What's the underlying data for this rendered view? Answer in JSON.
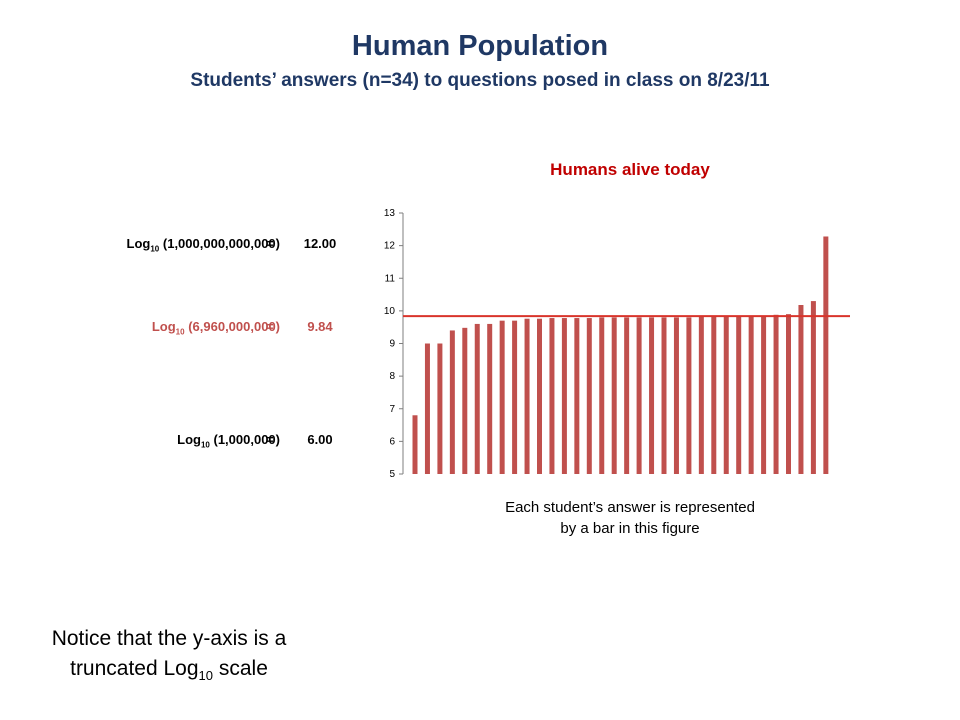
{
  "header": {
    "title": "Human Population",
    "subtitle": "Students’ answers (n=34) to questions posed in class on 8/23/11"
  },
  "log_labels": [
    {
      "prefix": "Log",
      "base": "10",
      "arg": "(1,000,000,000,000)",
      "equals": "=",
      "value": "12.00"
    },
    {
      "prefix": "Log",
      "base": "10",
      "arg": "(6,960,000,000)",
      "equals": "=",
      "value": "9.84"
    },
    {
      "prefix": "Log",
      "base": "10",
      "arg": "(1,000,000)",
      "equals": "=",
      "value": "6.00"
    }
  ],
  "bar_note": {
    "line1": "Each student’s answer is represented",
    "line2": "by a bar in this figure"
  },
  "notice": {
    "line1": "Notice that the y-axis is a",
    "line2_prefix": "truncated Log",
    "line2_sub": "10",
    "line2_suffix": " scale"
  },
  "colors": {
    "title": "#1f3864",
    "bar": "#c0504d",
    "reference_line": "#d9342b",
    "chart_title": "#c00000"
  },
  "chart_data": {
    "type": "bar",
    "title": "Humans alive today",
    "xlabel": "",
    "ylabel": "",
    "ylim": [
      5,
      13
    ],
    "yticks": [
      5,
      6,
      7,
      8,
      9,
      10,
      11,
      12,
      13
    ],
    "grid": false,
    "legend": "none",
    "values": [
      6.8,
      9.0,
      9.0,
      9.4,
      9.48,
      9.6,
      9.6,
      9.7,
      9.7,
      9.76,
      9.76,
      9.78,
      9.78,
      9.78,
      9.78,
      9.8,
      9.8,
      9.8,
      9.8,
      9.8,
      9.8,
      9.8,
      9.8,
      9.83,
      9.83,
      9.83,
      9.83,
      9.83,
      9.85,
      9.88,
      9.9,
      10.18,
      10.3,
      12.28
    ],
    "reference_line": {
      "value": 9.84
    }
  }
}
